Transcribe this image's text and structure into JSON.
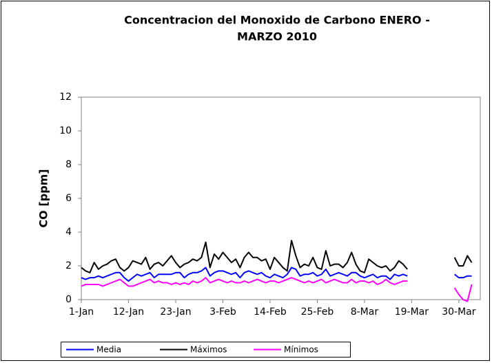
{
  "chart_data": {
    "type": "line",
    "title": [
      "Concentracion del Monoxido de Carbono  ENERO -",
      "MARZO 2010"
    ],
    "y_label": "CO [ppm]",
    "categories": [
      "1-Jan",
      null,
      null,
      null,
      null,
      null,
      null,
      null,
      null,
      null,
      null,
      "12-Jan",
      null,
      null,
      null,
      null,
      null,
      null,
      null,
      null,
      null,
      null,
      "23-Jan",
      null,
      null,
      null,
      null,
      null,
      null,
      null,
      null,
      null,
      null,
      "3-Feb",
      null,
      null,
      null,
      null,
      null,
      null,
      null,
      null,
      null,
      null,
      "14-Feb",
      null,
      null,
      null,
      null,
      null,
      null,
      null,
      null,
      null,
      null,
      "25-Feb",
      null,
      null,
      null,
      null,
      null,
      null,
      null,
      null,
      null,
      null,
      "8-Mar",
      null,
      null,
      null,
      null,
      null,
      null,
      null,
      null,
      null,
      null,
      "19-Mar",
      null,
      null,
      null,
      null,
      null,
      null,
      null,
      null,
      null,
      null,
      "30-Mar",
      null,
      null,
      null,
      null,
      null
    ],
    "series": [
      {
        "name": "Media",
        "color": "#0000ff",
        "values": [
          1.3,
          1.2,
          1.3,
          1.3,
          1.4,
          1.3,
          1.4,
          1.5,
          1.6,
          1.6,
          1.3,
          1.1,
          1.3,
          1.5,
          1.4,
          1.5,
          1.6,
          1.3,
          1.5,
          1.5,
          1.5,
          1.5,
          1.6,
          1.6,
          1.3,
          1.5,
          1.6,
          1.6,
          1.7,
          1.9,
          1.4,
          1.6,
          1.7,
          1.7,
          1.6,
          1.5,
          1.6,
          1.3,
          1.6,
          1.7,
          1.6,
          1.5,
          1.6,
          1.4,
          1.3,
          1.5,
          1.4,
          1.3,
          1.5,
          1.9,
          1.8,
          1.4,
          1.5,
          1.5,
          1.6,
          1.4,
          1.5,
          1.8,
          1.4,
          1.5,
          1.6,
          1.5,
          1.4,
          1.6,
          1.6,
          1.4,
          1.3,
          1.4,
          1.5,
          1.3,
          1.4,
          1.4,
          1.2,
          1.5,
          1.4,
          1.5,
          1.4,
          null,
          null,
          null,
          null,
          null,
          null,
          null,
          null,
          null,
          null,
          1.5,
          1.3,
          1.3,
          1.4,
          1.4,
          null,
          null
        ]
      },
      {
        "name": "Máximos",
        "color": "#000000",
        "values": [
          1.9,
          1.7,
          1.6,
          2.2,
          1.8,
          2.0,
          2.1,
          2.3,
          2.4,
          1.9,
          1.7,
          1.9,
          2.3,
          2.2,
          2.1,
          2.5,
          1.8,
          2.1,
          2.2,
          2.0,
          2.3,
          2.6,
          2.2,
          1.9,
          2.1,
          2.2,
          2.4,
          2.3,
          2.5,
          3.4,
          1.9,
          2.7,
          2.4,
          2.8,
          2.5,
          2.2,
          2.4,
          1.9,
          2.5,
          2.8,
          2.5,
          2.5,
          2.3,
          2.4,
          1.8,
          2.5,
          2.2,
          1.9,
          1.7,
          3.5,
          2.6,
          1.9,
          2.1,
          2.0,
          2.5,
          1.9,
          1.8,
          2.9,
          2.0,
          2.1,
          2.1,
          1.9,
          2.2,
          2.8,
          2.1,
          1.7,
          1.6,
          2.4,
          2.2,
          2.0,
          1.9,
          2.0,
          1.7,
          1.9,
          2.3,
          2.1,
          1.8,
          null,
          null,
          null,
          null,
          null,
          null,
          null,
          null,
          null,
          null,
          2.5,
          2.0,
          2.0,
          2.6,
          2.2,
          null,
          null
        ]
      },
      {
        "name": "Mínimos",
        "color": "#ff00ff",
        "values": [
          0.8,
          0.9,
          0.9,
          0.9,
          0.9,
          0.8,
          0.9,
          1.0,
          1.1,
          1.2,
          1.0,
          0.8,
          0.8,
          0.9,
          1.0,
          1.1,
          1.2,
          1.0,
          1.1,
          1.0,
          1.0,
          0.9,
          1.0,
          0.9,
          1.0,
          0.9,
          1.1,
          1.0,
          1.1,
          1.3,
          1.0,
          1.1,
          1.2,
          1.1,
          1.0,
          1.1,
          1.0,
          1.0,
          1.1,
          1.0,
          1.1,
          1.2,
          1.1,
          1.0,
          1.1,
          1.1,
          1.0,
          1.1,
          1.2,
          1.3,
          1.2,
          1.1,
          1.0,
          1.1,
          1.0,
          1.1,
          1.2,
          1.0,
          1.1,
          1.2,
          1.1,
          1.0,
          1.0,
          1.2,
          1.0,
          1.1,
          1.1,
          1.0,
          1.1,
          0.9,
          1.0,
          1.2,
          1.0,
          0.9,
          1.0,
          1.1,
          1.1,
          null,
          null,
          null,
          null,
          null,
          null,
          null,
          null,
          null,
          null,
          0.7,
          0.3,
          0.0,
          -0.1,
          0.9,
          null,
          null
        ]
      }
    ],
    "ylim": [
      0,
      12
    ],
    "yticks": [
      0,
      2,
      4,
      6,
      8,
      10,
      12
    ],
    "grid": false,
    "legend": "bottom"
  }
}
